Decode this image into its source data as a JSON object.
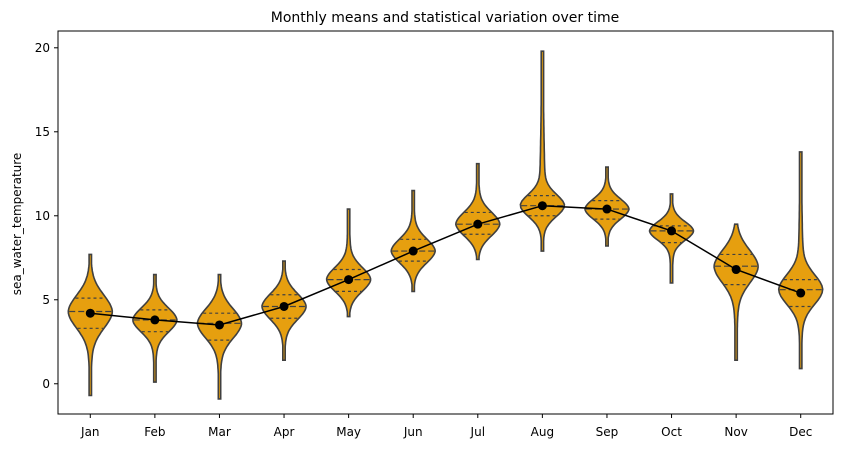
{
  "chart_data": {
    "type": "violin",
    "title": "Monthly means and statistical variation over time",
    "xlabel": "",
    "ylabel": "sea_water_temperature",
    "ylim": [
      -1.8,
      21.0
    ],
    "yticks": [
      0,
      5,
      10,
      15,
      20
    ],
    "categories": [
      "Jan",
      "Feb",
      "Mar",
      "Apr",
      "May",
      "Jun",
      "Jul",
      "Aug",
      "Sep",
      "Oct",
      "Nov",
      "Dec"
    ],
    "means": [
      4.2,
      3.8,
      3.5,
      4.6,
      6.2,
      7.9,
      9.5,
      10.6,
      10.4,
      9.1,
      6.8,
      5.4
    ],
    "min": [
      -0.7,
      0.1,
      -0.9,
      1.4,
      4.0,
      5.5,
      7.4,
      7.9,
      8.2,
      6.0,
      1.4,
      0.9
    ],
    "max": [
      7.7,
      6.5,
      6.5,
      7.3,
      10.4,
      11.5,
      13.1,
      19.8,
      12.9,
      11.3,
      9.5,
      13.8
    ],
    "q1": [
      3.3,
      3.1,
      2.6,
      3.9,
      5.5,
      7.3,
      8.9,
      10.0,
      9.8,
      8.4,
      5.9,
      4.6
    ],
    "median": [
      4.3,
      3.8,
      3.6,
      4.6,
      6.2,
      7.9,
      9.5,
      10.6,
      10.4,
      9.1,
      7.0,
      5.6
    ],
    "q3": [
      5.1,
      4.4,
      4.2,
      5.3,
      6.8,
      8.6,
      10.2,
      11.2,
      10.9,
      9.4,
      7.7,
      6.2
    ],
    "violin_color": "#e69f0f",
    "edge_color": "#404040",
    "mean_line_color": "#000000"
  }
}
